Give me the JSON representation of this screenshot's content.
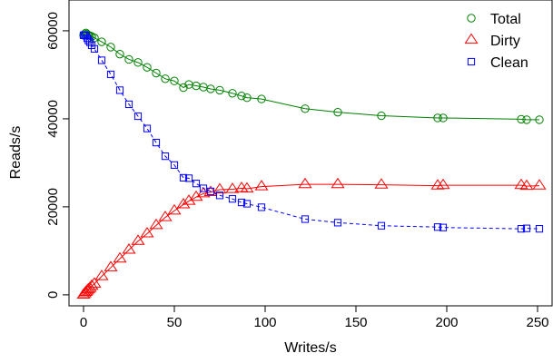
{
  "chart_data": {
    "type": "line",
    "xlabel": "Writes/s",
    "ylabel": "Reads/s",
    "xlim": [
      -8,
      258
    ],
    "ylim": [
      -2500,
      67000
    ],
    "x_ticks": [
      0,
      50,
      100,
      150,
      200,
      250
    ],
    "y_ticks": [
      0,
      20000,
      40000,
      60000
    ],
    "legend_position": "top-right",
    "grid": false,
    "series": [
      {
        "name": "Total",
        "marker": "circle",
        "color": "#008000",
        "x": [
          0,
          0.7,
          1.3,
          2,
          2.7,
          3.5,
          4.5,
          6,
          10,
          15,
          20,
          25,
          30,
          35,
          40,
          45,
          50,
          55,
          58,
          62,
          66,
          70,
          75,
          82,
          87,
          90,
          98,
          122,
          140,
          164,
          195,
          198,
          241,
          244,
          251
        ],
        "y": [
          59000,
          59300,
          59500,
          59200,
          59000,
          58900,
          58700,
          58400,
          57500,
          56300,
          54700,
          53500,
          52800,
          51700,
          50400,
          49100,
          48600,
          47100,
          47800,
          47500,
          47200,
          46800,
          46500,
          45800,
          45200,
          44800,
          44500,
          42300,
          41500,
          40700,
          40200,
          40200,
          39900,
          39800,
          39800
        ]
      },
      {
        "name": "Dirty",
        "marker": "triangle",
        "color": "#ff0000",
        "x": [
          0,
          0.7,
          1.3,
          2,
          2.7,
          3.5,
          4.5,
          6,
          10,
          15,
          20,
          25,
          30,
          35,
          40,
          45,
          50,
          55,
          58,
          62,
          66,
          70,
          75,
          82,
          87,
          90,
          98,
          122,
          140,
          164,
          195,
          198,
          241,
          244,
          251
        ],
        "y": [
          0,
          300,
          600,
          900,
          1200,
          1500,
          2000,
          2500,
          4200,
          6200,
          8200,
          10200,
          12200,
          13900,
          15800,
          17600,
          19100,
          20500,
          21300,
          22200,
          23000,
          23300,
          23900,
          24000,
          24200,
          24100,
          24600,
          25100,
          25100,
          25000,
          24800,
          24900,
          24900,
          24700,
          24800
        ]
      },
      {
        "name": "Clean",
        "marker": "square",
        "color": "#0000ff",
        "x": [
          0,
          0.7,
          1.3,
          2,
          2.7,
          3.5,
          4.5,
          6,
          10,
          15,
          20,
          25,
          30,
          35,
          40,
          45,
          50,
          55,
          58,
          62,
          66,
          70,
          75,
          82,
          87,
          90,
          98,
          122,
          140,
          164,
          195,
          198,
          241,
          244,
          251
        ],
        "y": [
          59000,
          59000,
          58900,
          58300,
          57800,
          57400,
          56700,
          55900,
          53300,
          50100,
          46500,
          43300,
          40600,
          37800,
          34600,
          31500,
          29500,
          26600,
          26500,
          25300,
          24200,
          23500,
          22600,
          21800,
          21000,
          20700,
          19900,
          17200,
          16400,
          15700,
          15400,
          15300,
          15000,
          15100,
          15000
        ]
      }
    ]
  }
}
